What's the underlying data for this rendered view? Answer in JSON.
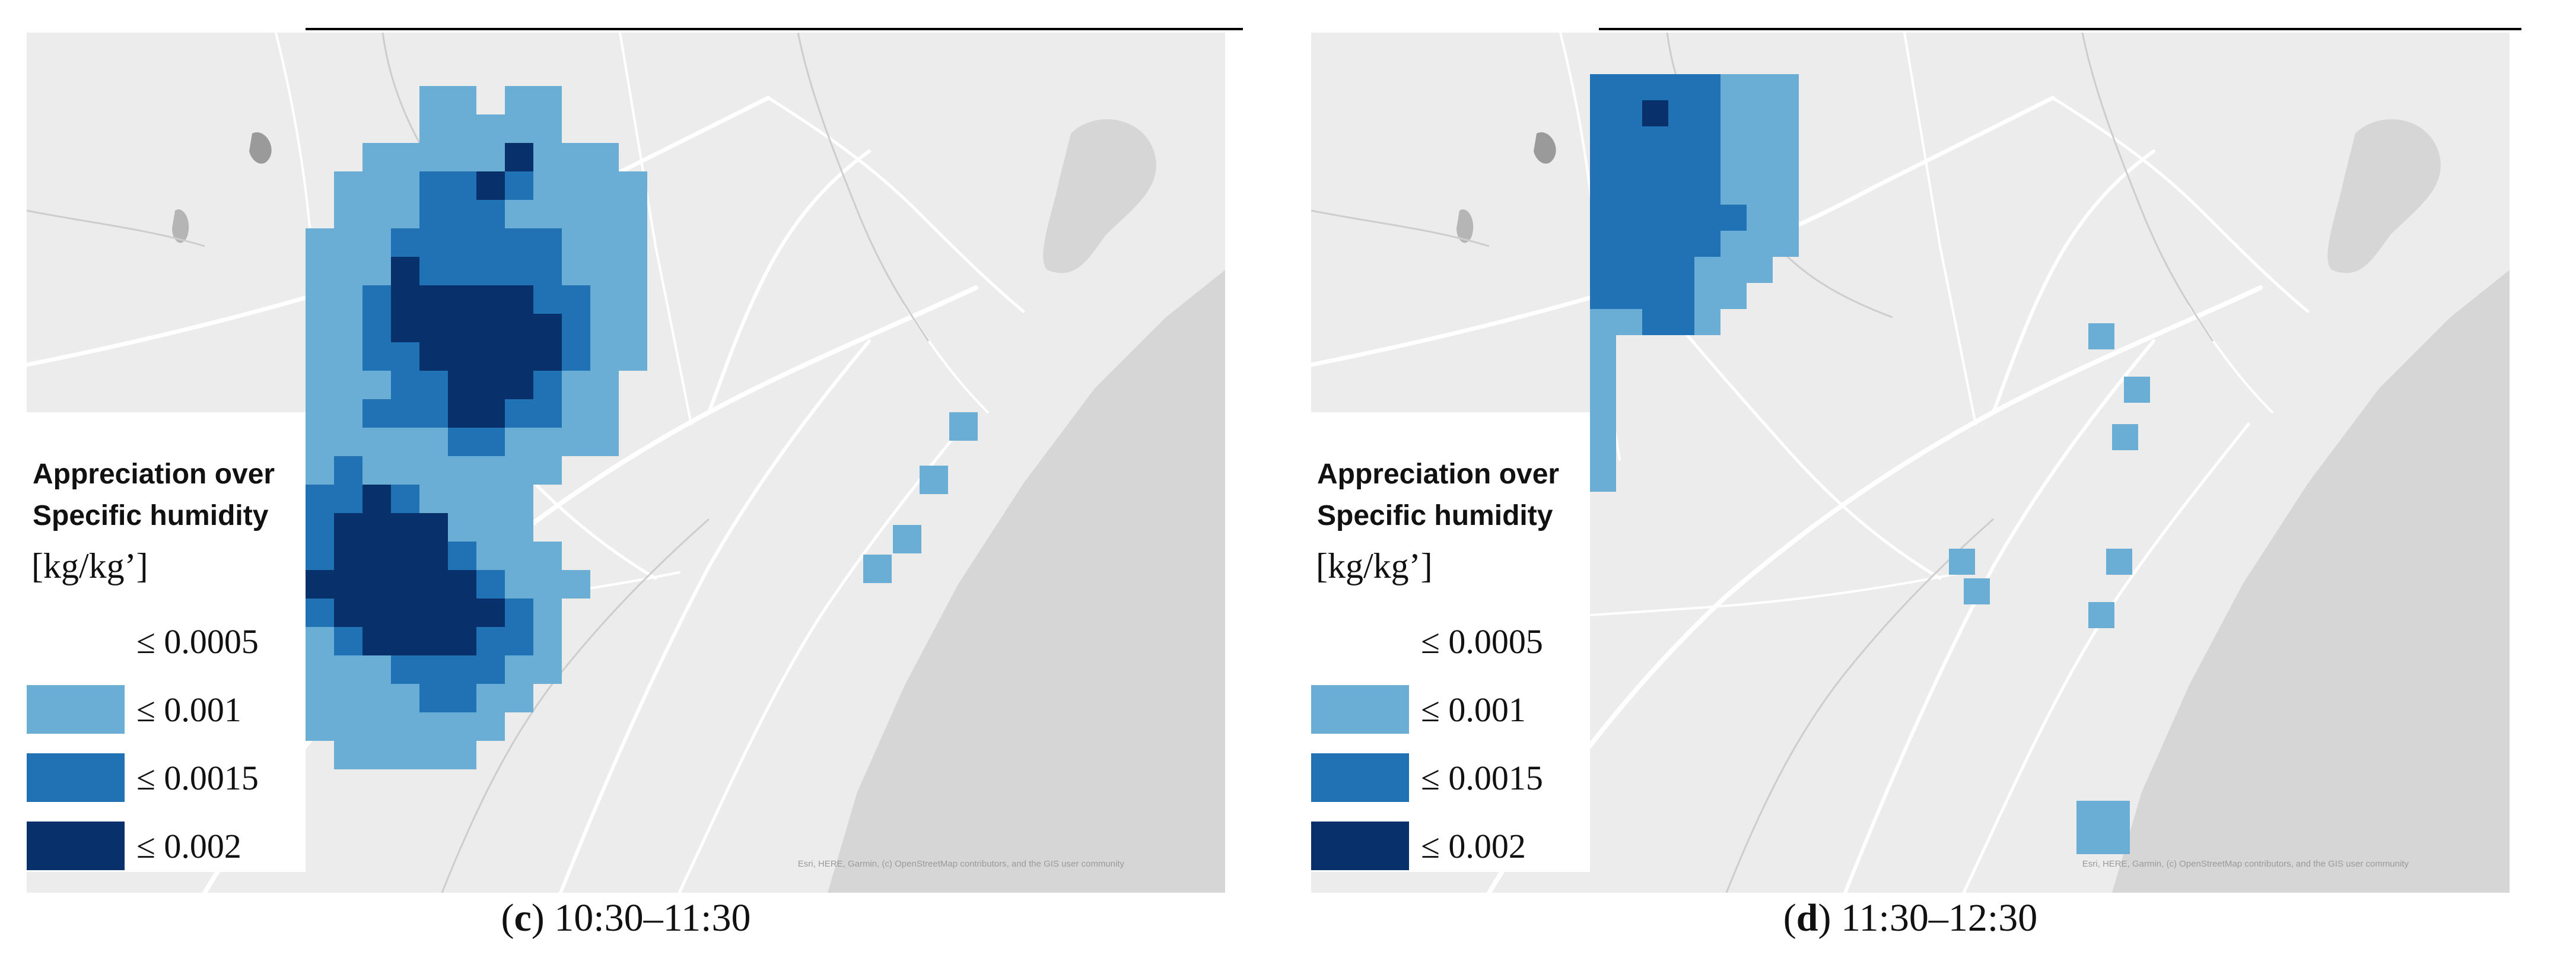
{
  "colors": {
    "background": "#ececec",
    "roads": "#ffffff",
    "sea": "#d6d6d6",
    "boundary": "#cdcdcd",
    "levels": {
      "le_0_0005": "transparent",
      "le_0_001": "#6aaed6",
      "le_0_0015": "#2171b5",
      "le_0_002": "#08306b"
    }
  },
  "panels": [
    {
      "id": "c",
      "legend": {
        "title_line1": "Appreciation over",
        "title_line2": "Specific humidity",
        "unit": "[kg/kg’]",
        "items": [
          {
            "label": "≤ 0.0005",
            "color_key": "le_0_0005"
          },
          {
            "label": "≤ 0.001",
            "color_key": "le_0_001"
          },
          {
            "label": "≤ 0.0015",
            "color_key": "le_0_0015"
          },
          {
            "label": "≤ 0.002",
            "color_key": "le_0_002"
          }
        ]
      },
      "caption_letter": "c",
      "caption_time": "10:30–11:30",
      "attribution": "Esri, HERE, Garmin, (c) OpenStreetMap contributors, and the GIS user community"
    },
    {
      "id": "d",
      "legend": {
        "title_line1": "Appreciation over",
        "title_line2": "Specific humidity",
        "unit": "[kg/kg’]",
        "items": [
          {
            "label": "≤ 0.0005",
            "color_key": "le_0_0005"
          },
          {
            "label": "≤ 0.001",
            "color_key": "le_0_001"
          },
          {
            "label": "≤ 0.0015",
            "color_key": "le_0_0015"
          },
          {
            "label": "≤ 0.002",
            "color_key": "le_0_002"
          }
        ]
      },
      "caption_letter": "d",
      "caption_time": "11:30–12:30",
      "attribution": "Esri, HERE, Garmin, (c) OpenStreetMap contributors, and the GIS user community"
    }
  ]
}
